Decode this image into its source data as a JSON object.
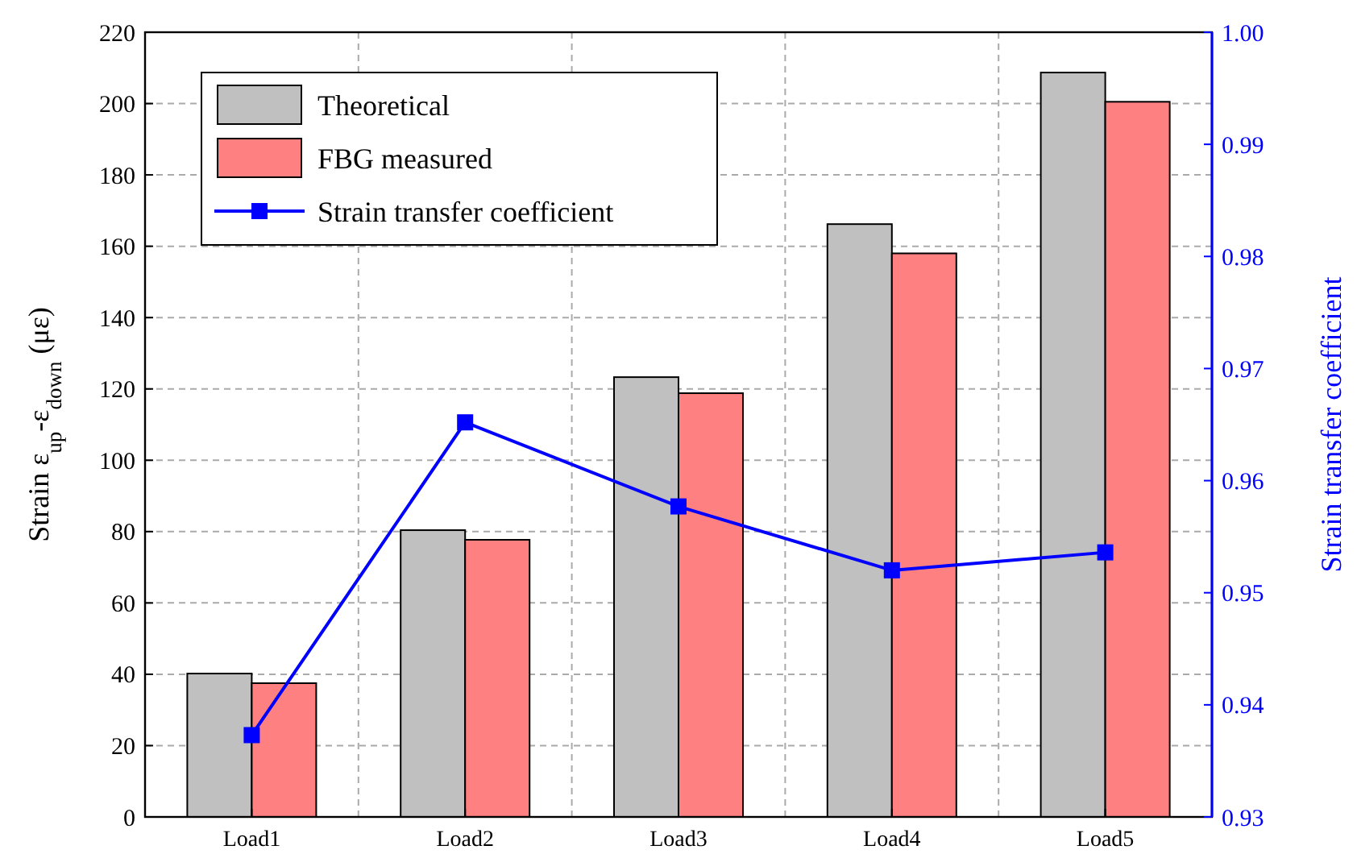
{
  "chart_data": {
    "type": "bar",
    "categories": [
      "Load1",
      "Load2",
      "Load3",
      "Load4",
      "Load5"
    ],
    "ylabel": "Strain ε$_{up}$-ε$_{down}$ (με)",
    "y2label": "Strain transfer coefficient",
    "ylim": [
      0,
      220
    ],
    "yticks": [
      0,
      20,
      40,
      60,
      80,
      100,
      120,
      140,
      160,
      180,
      200,
      220
    ],
    "y2lim": [
      0.93,
      1.0
    ],
    "y2ticks": [
      0.93,
      0.94,
      0.95,
      0.96,
      0.97,
      0.98,
      0.99,
      {
        "value": 1.0,
        "label": "1.00"
      }
    ],
    "grid": true,
    "legend": "top left",
    "series": [
      {
        "name": "Theoretical",
        "color": "#c0c0c0",
        "values": [
          40.2,
          80.4,
          123.3,
          166.2,
          208.7
        ]
      },
      {
        "name": "FBG measured",
        "color": "#ff8080",
        "values": [
          37.5,
          77.7,
          118.8,
          158.0,
          200.5
        ]
      },
      {
        "name": "Strain transfer coefficient",
        "type": "line",
        "axis": "y2",
        "color": "#0000ff",
        "marker": "square",
        "line_style": "solid",
        "values": [
          0.9373,
          0.9652,
          0.9577,
          0.952,
          0.9536
        ]
      }
    ]
  }
}
